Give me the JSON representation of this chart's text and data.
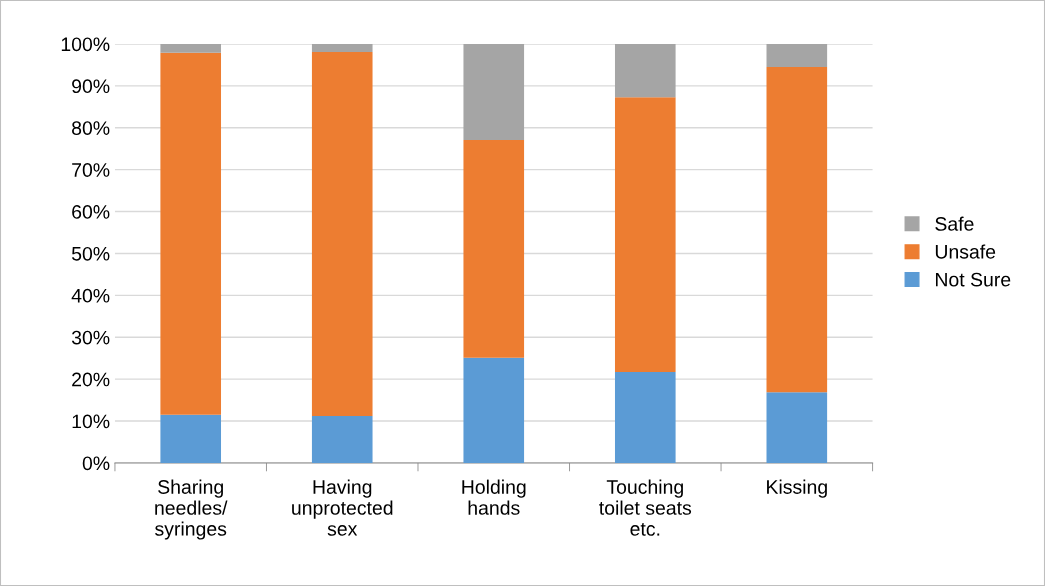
{
  "chart_data": {
    "type": "bar",
    "stacked": true,
    "categories": [
      "Sharing\nneedles/\nsyringes",
      "Having\nunprotected\nsex",
      "Holding\nhands",
      "Touching\ntoilet seats\netc.",
      "Kissing"
    ],
    "series": [
      {
        "name": "Not Sure",
        "color": "#5b9bd5",
        "values": [
          11.5,
          11.2,
          25.1,
          21.7,
          16.9
        ]
      },
      {
        "name": "Unsafe",
        "color": "#ed7d31",
        "values": [
          86.4,
          86.9,
          52.0,
          65.6,
          77.6
        ]
      },
      {
        "name": "Safe",
        "color": "#a5a5a5",
        "values": [
          2.1,
          1.9,
          22.9,
          12.7,
          5.5
        ]
      }
    ],
    "ylim": [
      0,
      100
    ],
    "yticks": [
      {
        "value": 0,
        "label": "0%"
      },
      {
        "value": 10,
        "label": "10%"
      },
      {
        "value": 20,
        "label": "20%"
      },
      {
        "value": 30,
        "label": "30%"
      },
      {
        "value": 40,
        "label": "40%"
      },
      {
        "value": 50,
        "label": "50%"
      },
      {
        "value": 60,
        "label": "60%"
      },
      {
        "value": 70,
        "label": "70%"
      },
      {
        "value": 80,
        "label": "80%"
      },
      {
        "value": 90,
        "label": "90%"
      },
      {
        "value": 100,
        "label": "100%"
      }
    ],
    "grid": "y",
    "legend": "right"
  }
}
